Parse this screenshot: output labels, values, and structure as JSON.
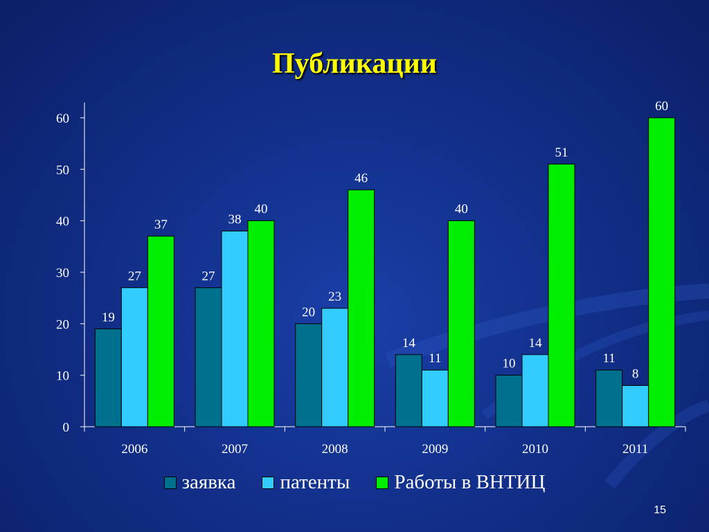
{
  "slide": {
    "title": "Публикации",
    "page_number": "15"
  },
  "colors": {
    "background": "#122f8a",
    "title": "#ffff00",
    "axis": "#ffffff"
  },
  "chart_data": {
    "type": "bar",
    "categories": [
      "2006",
      "2007",
      "2008",
      "2009",
      "2010",
      "2011"
    ],
    "series": [
      {
        "name": "заявка",
        "color": "#00708f",
        "values": [
          19,
          27,
          20,
          14,
          10,
          11
        ]
      },
      {
        "name": "патенты",
        "color": "#33ccff",
        "values": [
          27,
          38,
          23,
          11,
          14,
          8
        ]
      },
      {
        "name": "Работы в ВНТИЦ",
        "color": "#00ee00",
        "values": [
          37,
          40,
          46,
          40,
          51,
          60
        ]
      }
    ],
    "ylim": [
      0,
      60
    ],
    "yticks": [
      "0",
      "10",
      "20",
      "30",
      "40",
      "50",
      "60"
    ],
    "title": "",
    "xlabel": "",
    "ylabel": "",
    "grid": false,
    "legend_position": "bottom",
    "data_labels": true
  }
}
